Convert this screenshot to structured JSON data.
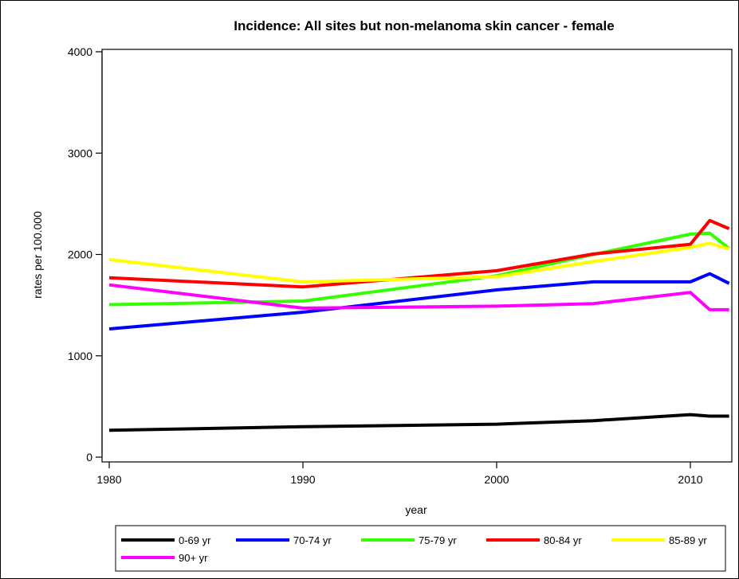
{
  "chart_data": {
    "type": "line",
    "title": "Incidence: All sites but non-melanoma skin cancer - female",
    "xlabel": "year",
    "ylabel": "rates per 100.000",
    "xlim": [
      1980,
      2012
    ],
    "ylim": [
      0,
      4000
    ],
    "x_ticks": [
      1980,
      1990,
      2000,
      2010
    ],
    "y_ticks": [
      0,
      1000,
      2000,
      3000,
      4000
    ],
    "grid": false,
    "legend_position": "bottom",
    "series": [
      {
        "name": "0-69 yr",
        "color": "#000000",
        "x": [
          1980,
          1990,
          2000,
          2005,
          2010,
          2011,
          2012
        ],
        "values": [
          265,
          300,
          325,
          360,
          420,
          405,
          405
        ]
      },
      {
        "name": "70-74 yr",
        "color": "#0000ff",
        "x": [
          1980,
          1990,
          2000,
          2005,
          2010,
          2011,
          2012
        ],
        "values": [
          1265,
          1430,
          1650,
          1730,
          1730,
          1810,
          1715
        ]
      },
      {
        "name": "75-79 yr",
        "color": "#33ff00",
        "x": [
          1980,
          1990,
          2000,
          2005,
          2010,
          2011,
          2012
        ],
        "values": [
          1505,
          1540,
          1790,
          2000,
          2200,
          2210,
          2060
        ]
      },
      {
        "name": "80-84 yr",
        "color": "#ff0000",
        "x": [
          1980,
          1990,
          2000,
          2005,
          2010,
          2011,
          2012
        ],
        "values": [
          1770,
          1680,
          1840,
          2005,
          2100,
          2335,
          2255
        ]
      },
      {
        "name": "85-89 yr",
        "color": "#ffff00",
        "x": [
          1980,
          1990,
          2000,
          2005,
          2010,
          2011,
          2012
        ],
        "values": [
          1950,
          1730,
          1780,
          1930,
          2070,
          2110,
          2055
        ]
      },
      {
        "name": "90+ yr",
        "color": "#ff00ff",
        "x": [
          1980,
          1990,
          2000,
          2005,
          2010,
          2011,
          2012
        ],
        "values": [
          1700,
          1470,
          1490,
          1515,
          1625,
          1455,
          1455
        ]
      }
    ]
  }
}
